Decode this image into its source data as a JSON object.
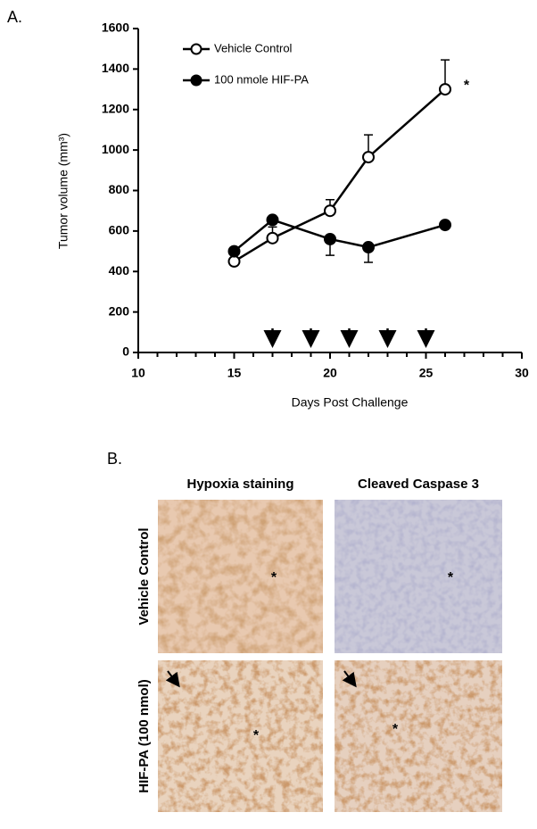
{
  "panel_a": {
    "label": "A."
  },
  "chart_data": {
    "type": "line",
    "xlabel": "Days Post Challenge",
    "ylabel": "Tumor volume (mm³)",
    "xlim": [
      10,
      30
    ],
    "ylim": [
      0,
      1600
    ],
    "xticks": [
      10,
      15,
      20,
      25,
      30
    ],
    "xminorticks": [
      11,
      12,
      13,
      14,
      16,
      17,
      18,
      19,
      21,
      22,
      23,
      24,
      26,
      27,
      28,
      29
    ],
    "yticks": [
      0,
      200,
      400,
      600,
      800,
      1000,
      1200,
      1400,
      1600
    ],
    "legend": "upper left",
    "series": [
      {
        "name": "Vehicle Control",
        "color": "#000000",
        "marker": "open",
        "error_side": "up",
        "x": [
          15,
          17,
          20,
          22,
          26
        ],
        "values": [
          450,
          565,
          700,
          965,
          1300
        ],
        "errors": [
          null,
          55,
          55,
          110,
          145
        ]
      },
      {
        "name": "100 nmole HIF-PA",
        "color": "#000000",
        "marker": "filled",
        "error_side": "down",
        "x": [
          15,
          17,
          20,
          22,
          26
        ],
        "values": [
          500,
          655,
          560,
          520,
          630
        ],
        "errors": [
          null,
          null,
          80,
          75,
          null
        ]
      }
    ],
    "arrows_x": [
      17,
      19,
      21,
      23,
      25
    ],
    "annotation": "*"
  },
  "panel_b": {
    "label": "B.",
    "columns": [
      "Hypoxia staining",
      "Cleaved Caspase 3"
    ],
    "rows": [
      "Vehicle Control",
      "HIF-PA (100 nmol)"
    ],
    "images": [
      {
        "annotation": "*"
      },
      {
        "annotation": "*"
      },
      {
        "annotation": "*"
      },
      {
        "annotation": "*"
      }
    ]
  }
}
